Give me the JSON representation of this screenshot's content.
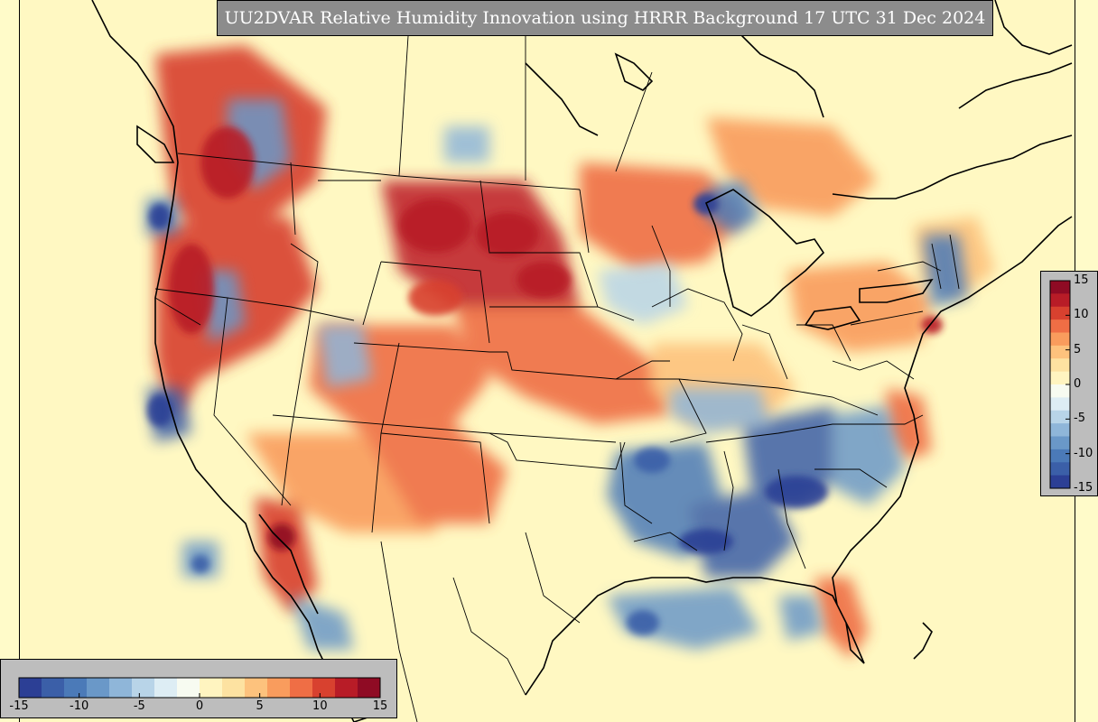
{
  "title": "UU2DVAR Relative Humidity Innovation using HRRR Background 17 UTC 31 Dec 2024",
  "colorbar": {
    "min": -15,
    "max": 15,
    "ticks_horizontal": [
      "-15",
      "-10",
      "-5",
      "0",
      "5",
      "10",
      "15"
    ],
    "ticks_vertical": [
      "15",
      "10",
      "5",
      "0",
      "-5",
      "-10",
      "-15"
    ],
    "colors": [
      "#2c3f95",
      "#3b5fa8",
      "#4b7ab8",
      "#6a98c8",
      "#8fb6d9",
      "#b8d4e8",
      "#ddedf4",
      "#f7fbf1",
      "#fff4c0",
      "#fde2a1",
      "#fdc27d",
      "#f99c5d",
      "#ef6e45",
      "#d8412f",
      "#b81c27",
      "#8f0b24"
    ]
  },
  "map": {
    "background_color": "#fff8c2",
    "moist_color": "#c0272d",
    "dry_color": "#3b63ad"
  }
}
